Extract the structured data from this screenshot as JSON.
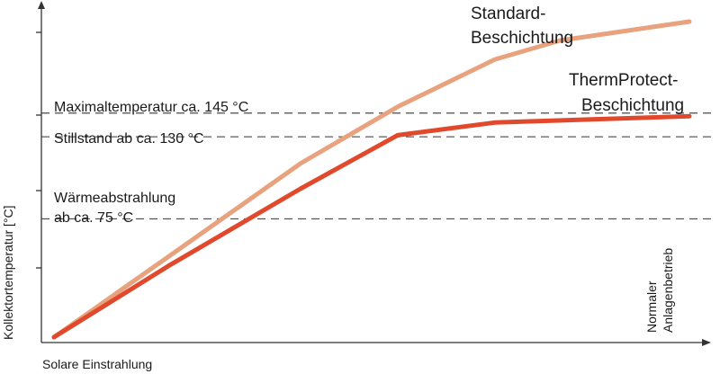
{
  "chart_data": {
    "type": "line",
    "title": "",
    "xlabel": "Solare Einstrahlung",
    "ylabel": "Kollektortemperatur [°C]",
    "x_tick_labels": [],
    "y_tick_labels": [],
    "grid": false,
    "legend": "none",
    "xlim": [
      0,
      100
    ],
    "ylim": [
      0,
      100
    ],
    "series": [
      {
        "name": "Standard-Beschichtung",
        "color": "#e8a27e",
        "x": [
          2,
          20,
          40,
          55,
          70,
          80,
          100
        ],
        "y": [
          0,
          26,
          55,
          73,
          88,
          94,
          100
        ]
      },
      {
        "name": "ThermProtect-Beschichtung",
        "color": "#e0492c",
        "x": [
          2,
          20,
          40,
          55,
          70,
          100
        ],
        "y": [
          0,
          23,
          47,
          64,
          68,
          70
        ]
      }
    ],
    "series_labels": {
      "standard_line1": "Standard-",
      "standard_line2": "Beschichtung",
      "thermprotect_line1": "ThermProtect-",
      "thermprotect_line2": "Beschichtung"
    },
    "reference_lines": [
      {
        "y": 71,
        "label_lines": [
          "Maximaltemperatur ca. 145 °C"
        ]
      },
      {
        "y": 63.5,
        "label_lines": [
          "Stillstand ab ca. 130 °C"
        ]
      },
      {
        "y": 37.5,
        "label_lines": [
          "Wärmeabstrahlung",
          "ab ca. 75 °C"
        ]
      }
    ],
    "annotation_vertical": {
      "line1": "Normaler",
      "line2": "Anlagenbetrieb"
    }
  }
}
